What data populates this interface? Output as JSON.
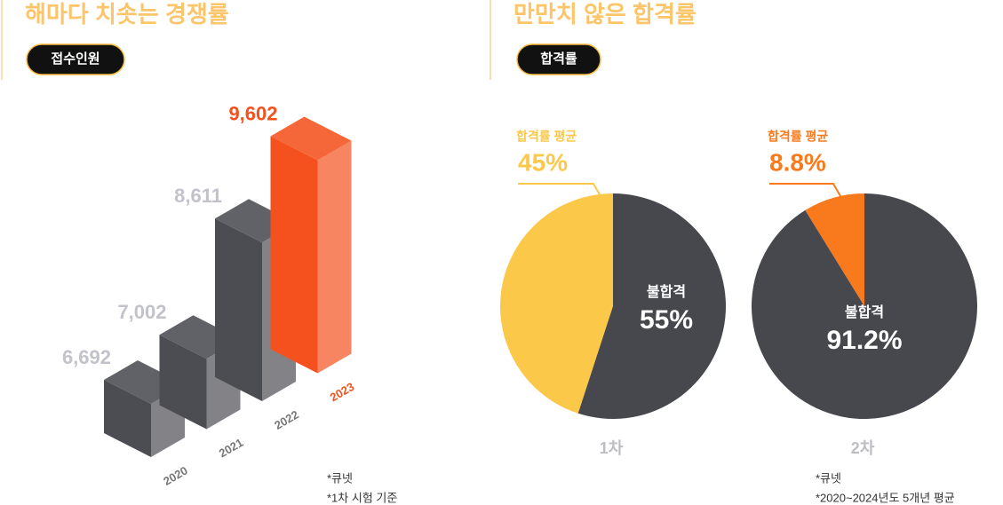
{
  "chart_data": [
    {
      "type": "bar",
      "title": "해마다 치솟는 경쟁률",
      "badge": "접수인원",
      "categories": [
        "2020",
        "2021",
        "2022",
        "2023"
      ],
      "values": [
        6692,
        7002,
        8611,
        9602
      ],
      "value_labels": [
        "6,692",
        "7,002",
        "8,611",
        "9,602"
      ],
      "colors": [
        "#4c4d53",
        "#4c4d53",
        "#4c4d53",
        "#f4511e"
      ],
      "notes": [
        "*큐넷",
        "*1차 시험 기준"
      ]
    },
    {
      "type": "pie",
      "title": "만만치 않은 합격률",
      "badge": "합격률",
      "label": "1차",
      "categories": [
        "합격률 평균",
        "불합격"
      ],
      "values": [
        45,
        55
      ],
      "value_labels": [
        "45%",
        "55%"
      ],
      "colors": [
        "#fcc84a",
        "#47484e"
      ]
    },
    {
      "type": "pie",
      "label": "2차",
      "categories": [
        "합격률 평균",
        "불합격"
      ],
      "values": [
        8.8,
        91.2
      ],
      "value_labels": [
        "8.8%",
        "91.2%"
      ],
      "colors": [
        "#f87a1c",
        "#47484e"
      ],
      "notes": [
        "*큐넷",
        "*2020~2024년도 5개년 평균"
      ]
    }
  ]
}
